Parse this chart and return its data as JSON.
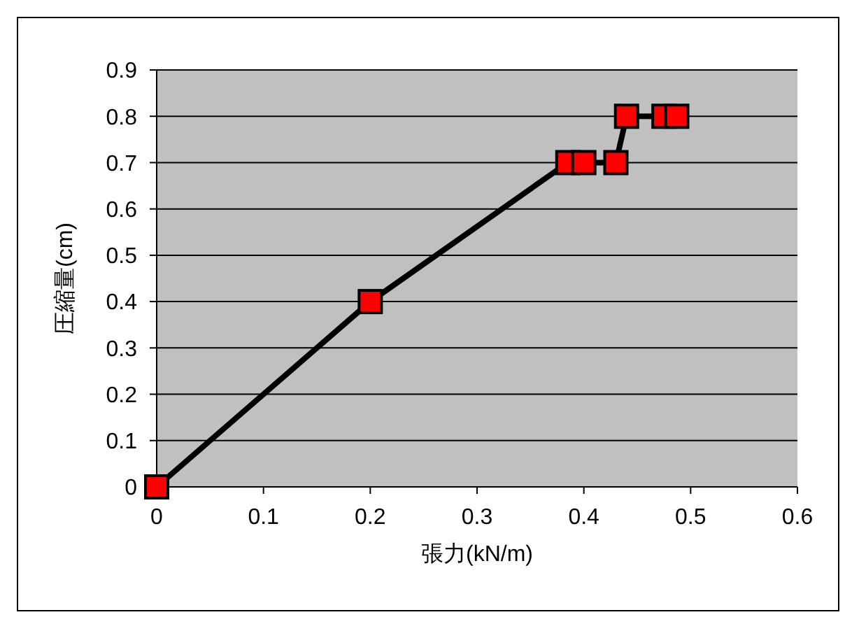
{
  "chart_data": {
    "type": "line",
    "xlabel": "張力(kN/m)",
    "ylabel": "圧縮量(cm)",
    "x": [
      0,
      0.2,
      0.385,
      0.4,
      0.43,
      0.44,
      0.475,
      0.487
    ],
    "series": [
      {
        "color": "#000000",
        "colors": [
          "#ff0000",
          "#ff0000",
          "#ff0000",
          "#ff0000",
          "#ff0000",
          "#ff0000",
          "#ff0000",
          "#ff0000"
        ],
        "values": [
          0,
          0.4,
          0.7,
          0.7,
          0.7,
          0.8,
          0.8,
          0.8
        ]
      }
    ],
    "xlim": [
      0,
      0.6
    ],
    "xticks": [
      0,
      0.1,
      0.2,
      0.3,
      0.4,
      0.5,
      0.6
    ],
    "ylim": [
      0,
      0.9
    ],
    "yticks": [
      0,
      0.1,
      0.2,
      0.3,
      0.4,
      0.5,
      0.6,
      0.7,
      0.8,
      0.9
    ],
    "grid": "y",
    "marker": "square",
    "line_style": "solid"
  }
}
